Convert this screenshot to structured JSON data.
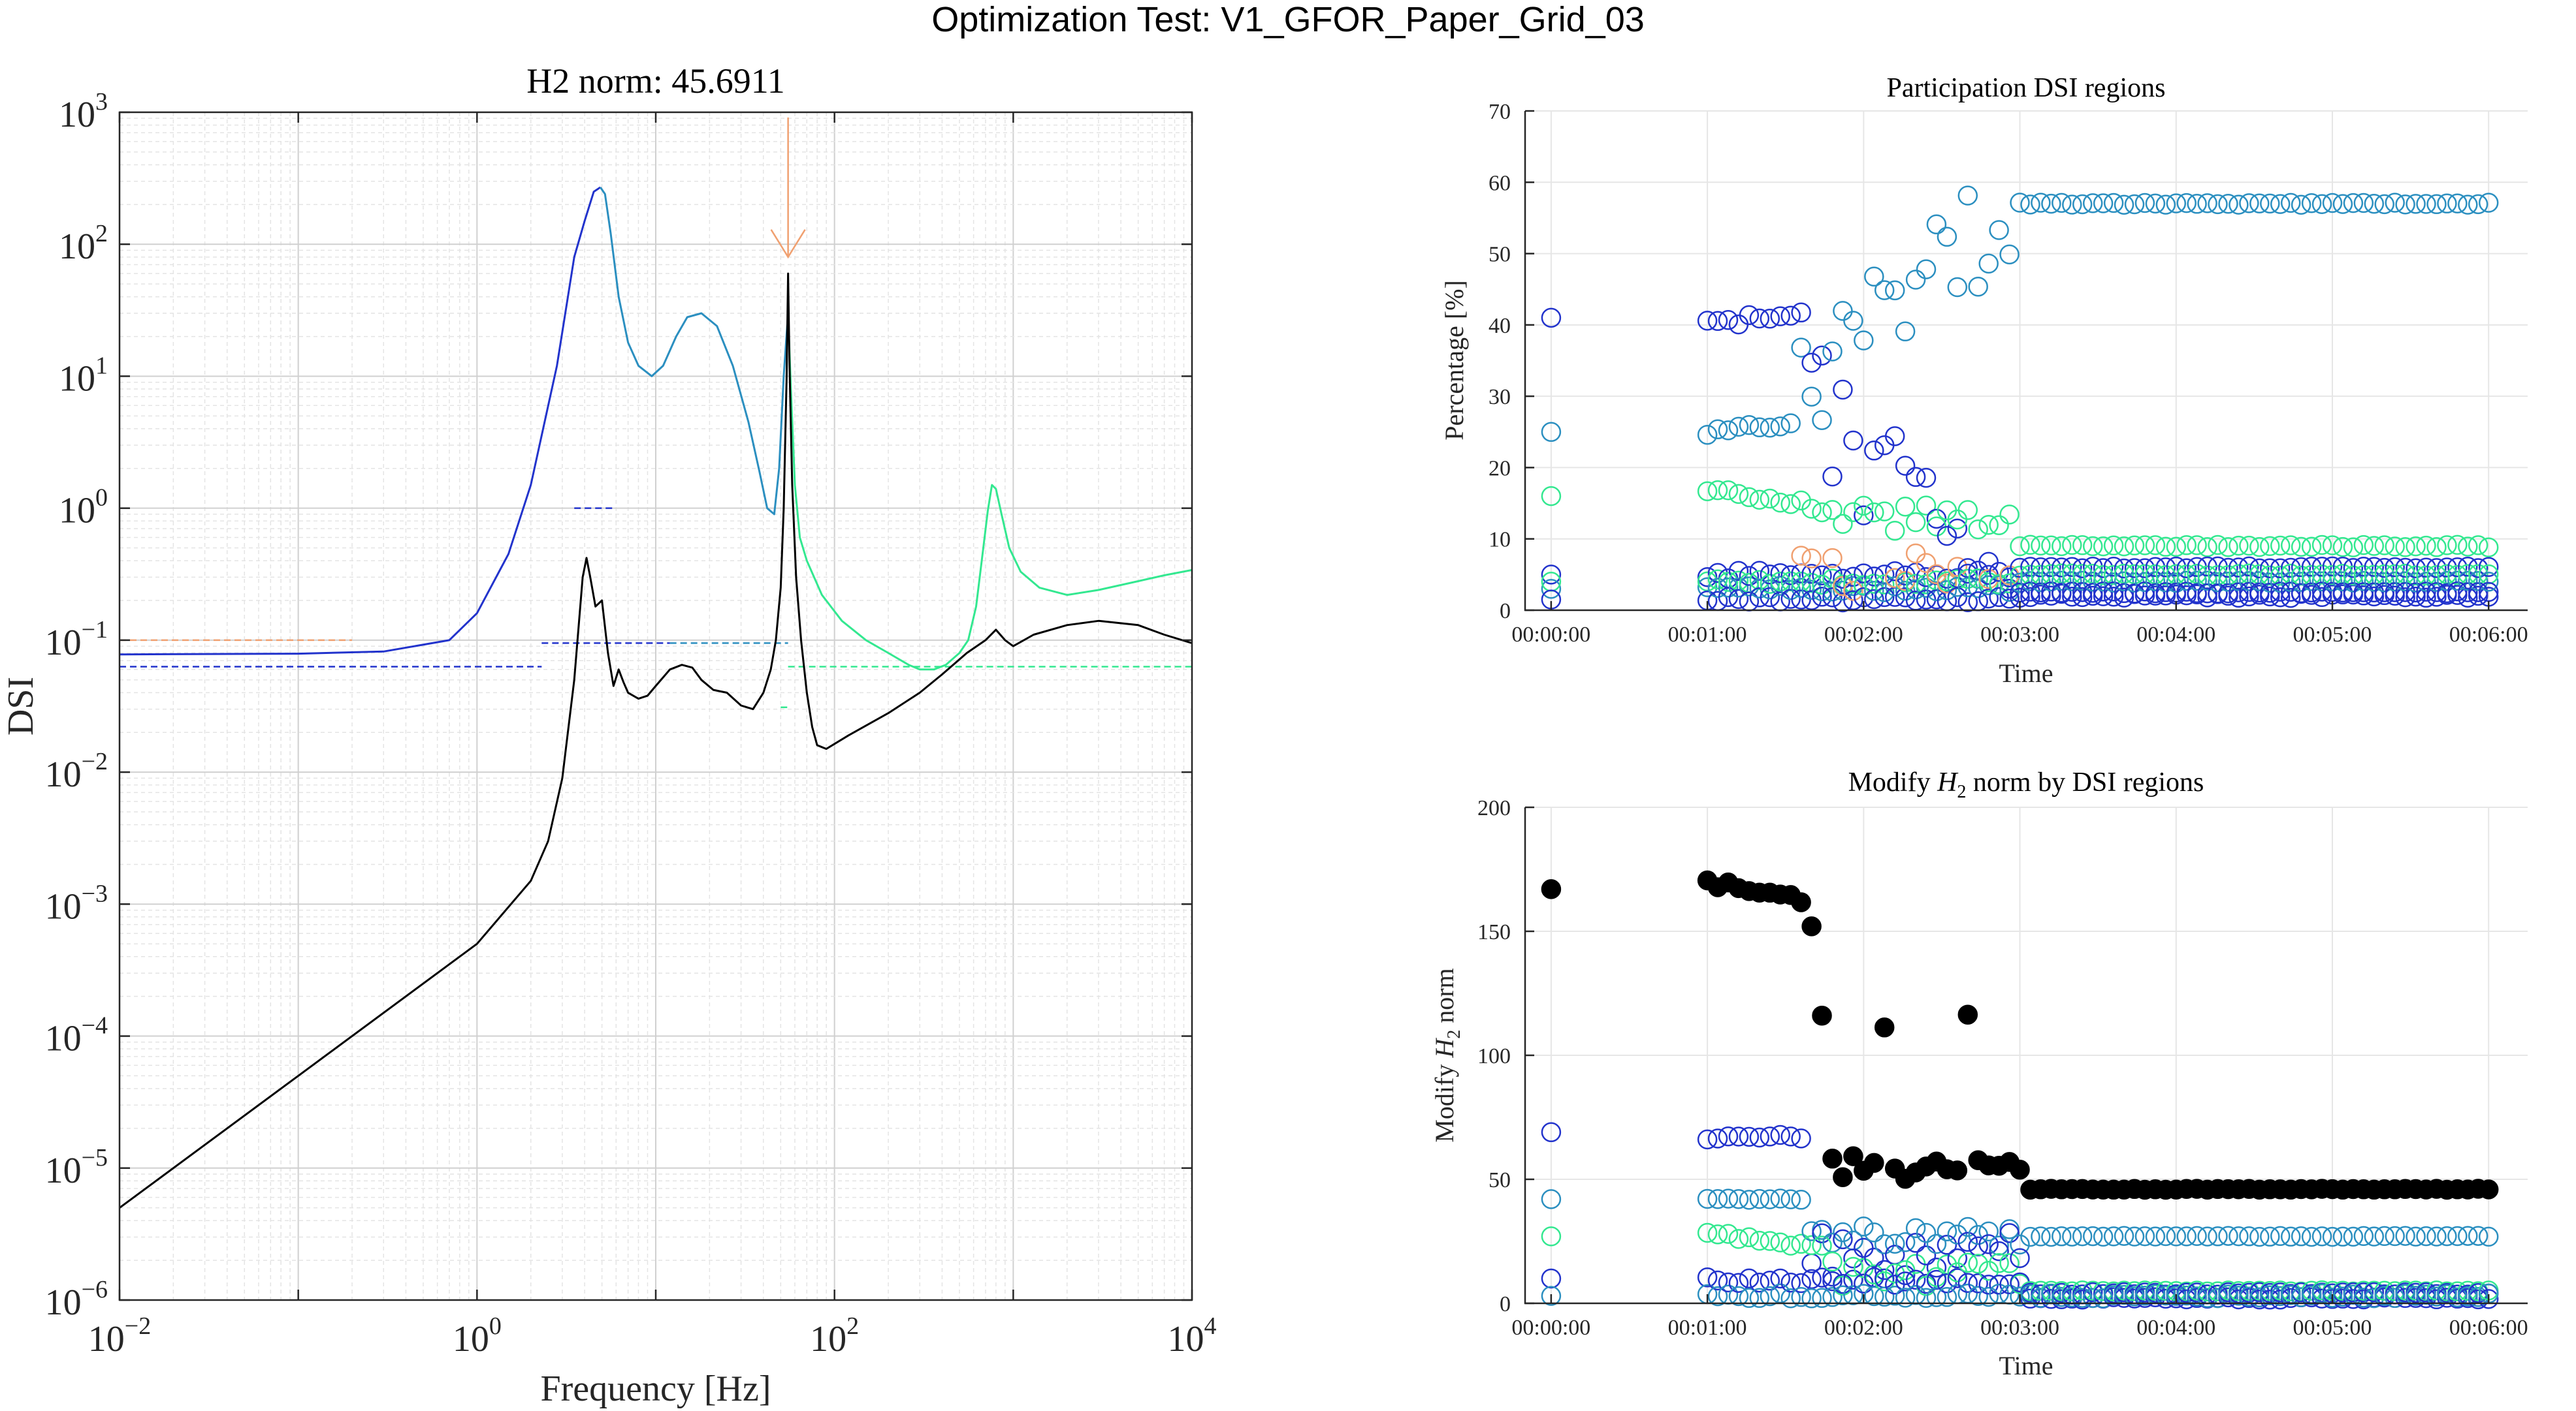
{
  "figure": {
    "suptitle": "Optimization Test: V1_GFOR_Paper_Grid_03"
  },
  "colors": {
    "blue": "#2233cc",
    "teal": "#2b8fc0",
    "green": "#33e890",
    "orange": "#f0a070",
    "black": "#000000"
  },
  "chart_data": [
    {
      "type": "line",
      "title": "H2 norm: 45.6911",
      "xlabel": "Frequency [Hz]",
      "ylabel": "DSI",
      "xscale": "log",
      "yscale": "log",
      "xlim": [
        0.01,
        10000
      ],
      "ylim": [
        1e-06,
        1000
      ],
      "x_ticks": [
        {
          "base": "10",
          "exp": "−2"
        },
        {
          "base": "10",
          "exp": "0"
        },
        {
          "base": "10",
          "exp": "2"
        },
        {
          "base": "10",
          "exp": "4"
        }
      ],
      "y_ticks": [
        {
          "base": "10",
          "exp": "−6"
        },
        {
          "base": "10",
          "exp": "−5"
        },
        {
          "base": "10",
          "exp": "−4"
        },
        {
          "base": "10",
          "exp": "−3"
        },
        {
          "base": "10",
          "exp": "−2"
        },
        {
          "base": "10",
          "exp": "−1"
        },
        {
          "base": "10",
          "exp": "0"
        },
        {
          "base": "10",
          "exp": "1"
        },
        {
          "base": "10",
          "exp": "2"
        },
        {
          "base": "10",
          "exp": "3"
        }
      ],
      "grid": true,
      "series": [
        {
          "color": "#2233cc",
          "x": [
            0.01,
            0.1,
            0.3,
            0.7,
            1.0,
            1.5,
            2.0,
            2.8,
            3.5,
            4.0,
            4.5,
            4.9
          ],
          "y": [
            0.078,
            0.079,
            0.082,
            0.1,
            0.16,
            0.45,
            1.5,
            12,
            80,
            150,
            250,
            270
          ]
        },
        {
          "color": "#2b8fc0",
          "x": [
            4.9,
            5.2,
            5.6,
            6.2,
            7.0,
            8.0,
            9.5,
            11,
            13,
            15,
            18,
            22,
            27,
            33,
            38,
            42,
            46,
            49,
            52,
            55
          ],
          "y": [
            270,
            240,
            120,
            40,
            18,
            12,
            10,
            12,
            20,
            28,
            30,
            24,
            12,
            4.5,
            1.9,
            1.0,
            0.9,
            2.0,
            10,
            30
          ]
        },
        {
          "color": "#33e890",
          "x": [
            55,
            57,
            60,
            64,
            70,
            85,
            110,
            150,
            200,
            260,
            300,
            360,
            420,
            500,
            560,
            620,
            680,
            720,
            760,
            800,
            860,
            950,
            1100,
            1400,
            2000,
            3000,
            5000,
            7000,
            10000
          ],
          "y": [
            30,
            8,
            1.5,
            0.6,
            0.4,
            0.22,
            0.14,
            0.1,
            0.08,
            0.065,
            0.06,
            0.06,
            0.065,
            0.08,
            0.1,
            0.18,
            0.5,
            0.95,
            1.5,
            1.4,
            0.9,
            0.5,
            0.33,
            0.25,
            0.22,
            0.24,
            0.28,
            0.31,
            0.34
          ]
        },
        {
          "color": "#000000",
          "x": [
            0.01,
            0.1,
            1,
            2,
            2.5,
            3,
            3.5,
            3.9,
            4.1,
            4.3,
            4.6,
            5.0,
            5.4,
            5.8,
            6.2,
            6.6,
            7,
            8,
            9,
            10,
            12,
            14,
            16,
            18,
            21,
            25,
            30,
            35,
            40,
            44,
            47,
            50,
            52,
            54,
            55,
            56,
            58,
            61,
            65,
            70,
            75,
            80,
            90,
            120,
            200,
            300,
            400,
            550,
            700,
            800,
            900,
            1000,
            1300,
            2000,
            3000,
            5000,
            7000,
            10000
          ],
          "y": [
            5e-06,
            5e-05,
            0.0005,
            0.0015,
            0.003,
            0.009,
            0.05,
            0.3,
            0.42,
            0.3,
            0.18,
            0.2,
            0.08,
            0.045,
            0.06,
            0.048,
            0.04,
            0.036,
            0.038,
            0.045,
            0.06,
            0.065,
            0.062,
            0.05,
            0.042,
            0.04,
            0.032,
            0.03,
            0.04,
            0.06,
            0.1,
            0.25,
            1.0,
            10,
            60,
            12,
            1.5,
            0.3,
            0.1,
            0.04,
            0.022,
            0.016,
            0.015,
            0.019,
            0.028,
            0.04,
            0.055,
            0.08,
            0.1,
            0.12,
            0.1,
            0.09,
            0.11,
            0.13,
            0.14,
            0.13,
            0.11,
            0.095
          ]
        }
      ],
      "ref_segments": [
        {
          "color": "#2233cc",
          "x": [
            0.01,
            2.3
          ],
          "y": 0.063
        },
        {
          "color": "#2233cc",
          "x": [
            2.3,
            12
          ],
          "y": 0.095
        },
        {
          "color": "#2b8fc0",
          "x": [
            12,
            55
          ],
          "y": 0.095
        },
        {
          "color": "#2233cc",
          "x": [
            3.5,
            5.8
          ],
          "y": 1.0
        },
        {
          "color": "#33e890",
          "x": [
            55,
            10000
          ],
          "y": 0.063
        },
        {
          "color": "#33e890",
          "x": [
            50,
            56
          ],
          "y": 0.031
        },
        {
          "color": "#f0a070",
          "x": [
            0.01,
            0.2
          ],
          "y": 0.1
        }
      ],
      "marker_arrow": {
        "color": "#f0a070",
        "x": 55,
        "y_from": 800,
        "y_to": 80
      }
    },
    {
      "type": "scatter",
      "title": "Participation DSI regions",
      "xlabel": "Time",
      "ylabel": "Percentage [%]",
      "ylim": [
        0,
        70
      ],
      "xlim_seconds": [
        -10,
        375
      ],
      "y_ticks": [
        "0",
        "10",
        "20",
        "30",
        "40",
        "50",
        "60",
        "70"
      ],
      "x_ticks": [
        "00:00:00",
        "00:01:00",
        "00:02:00",
        "00:03:00",
        "00:04:00",
        "00:05:00",
        "00:06:00"
      ],
      "grid": true,
      "marker": "open-circle",
      "series": [
        {
          "color": "#2233cc",
          "kind": "participation-high",
          "values": [
            41,
            25,
            5,
            2
          ]
        },
        {
          "color": "#2b8fc0",
          "kind": "participation-main",
          "values": [
            25,
            57,
            57
          ]
        },
        {
          "color": "#33e890",
          "kind": "participation-mid",
          "values": [
            16,
            9,
            9
          ]
        },
        {
          "color": "#2233cc",
          "kind": "participation-low",
          "values": [
            5,
            6,
            6
          ]
        }
      ]
    },
    {
      "type": "scatter",
      "title_parts": [
        "Modify ",
        "H",
        "2",
        " norm by DSI regions"
      ],
      "xlabel": "Time",
      "ylabel_parts": [
        "Modify ",
        "H",
        "2",
        " norm"
      ],
      "ylim": [
        0,
        200
      ],
      "xlim_seconds": [
        -10,
        375
      ],
      "y_ticks": [
        "0",
        "50",
        "100",
        "150",
        "200"
      ],
      "x_ticks": [
        "00:00:00",
        "00:01:00",
        "00:02:00",
        "00:03:00",
        "00:04:00",
        "00:05:00",
        "00:06:00"
      ],
      "grid": true,
      "series": [
        {
          "color": "#000000",
          "marker": "filled-circle",
          "values": [
            167,
            170,
            47,
            46
          ]
        },
        {
          "color": "#2233cc",
          "marker": "open-circle",
          "values": [
            69,
            67,
            10
          ]
        },
        {
          "color": "#2b8fc0",
          "marker": "open-circle",
          "values": [
            42,
            42,
            27,
            27
          ]
        },
        {
          "color": "#33e890",
          "marker": "open-circle",
          "values": [
            27,
            28,
            5
          ]
        }
      ]
    }
  ]
}
